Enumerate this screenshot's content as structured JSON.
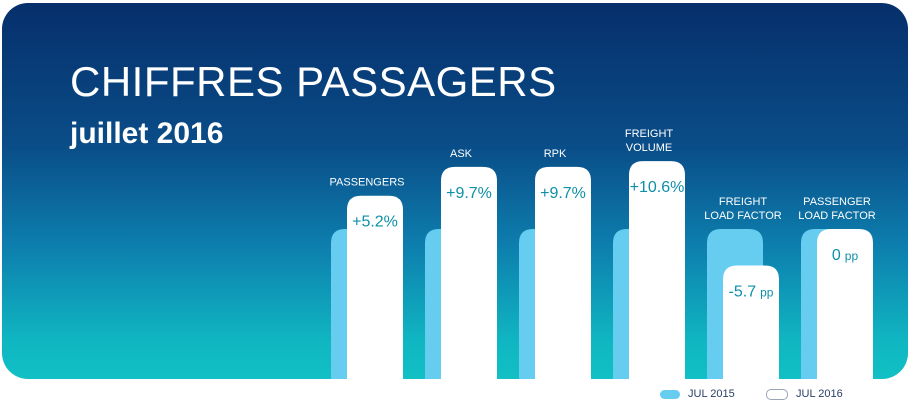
{
  "header": {
    "title": "CHIFFRES PASSAGERS",
    "subtitle": "juillet 2016"
  },
  "colors": {
    "series_2015": "#66ccf0",
    "series_2016": "#ffffff",
    "value_text": "#0d8fa8",
    "label_text": "#ffffff",
    "legend_text": "#2a3f66"
  },
  "chart_data": {
    "type": "bar",
    "categories": [
      [
        "PASSENGERS"
      ],
      [
        "ASK"
      ],
      [
        "RPK"
      ],
      [
        "FREIGHT",
        "VOLUME"
      ],
      [
        "FREIGHT",
        "LOAD FACTOR"
      ],
      [
        "PASSENGER",
        "LOAD FACTOR"
      ]
    ],
    "series": [
      {
        "name": "JUL 2015",
        "values": [
          100,
          100,
          100,
          100,
          100,
          100
        ]
      },
      {
        "name": "JUL 2016",
        "values": [
          105.2,
          109.7,
          109.7,
          110.6,
          94.3,
          100
        ]
      }
    ],
    "change_labels": [
      {
        "value": "+5.2%",
        "unit": ""
      },
      {
        "value": "+9.7%",
        "unit": ""
      },
      {
        "value": "+9.7%",
        "unit": ""
      },
      {
        "value": "+10.6%",
        "unit": ""
      },
      {
        "value": "-5.7",
        "unit": "pp"
      },
      {
        "value": "0",
        "unit": "pp"
      }
    ]
  },
  "legend": {
    "items": [
      {
        "label": "JUL 2015"
      },
      {
        "label": "JUL 2016"
      }
    ]
  }
}
